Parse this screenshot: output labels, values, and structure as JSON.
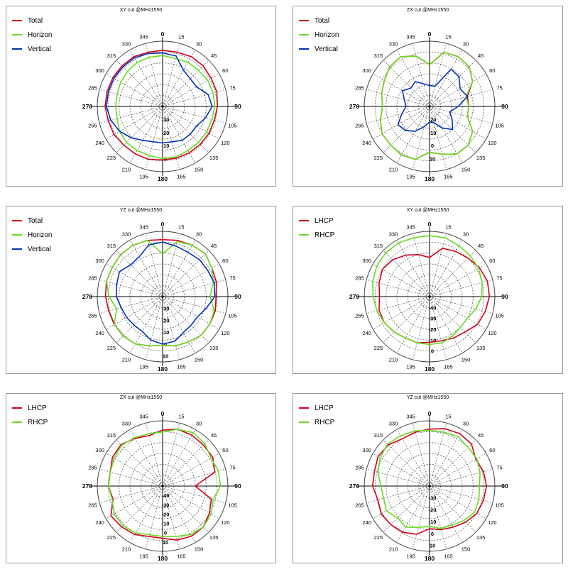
{
  "chart_data": [
    {
      "type": "polar",
      "title": "XY cut @MHz1550",
      "angle_labels": [
        "0",
        "15",
        "30",
        "45",
        "60",
        "75",
        "90",
        "105",
        "120",
        "135",
        "150",
        "165",
        "180",
        "195",
        "210",
        "225",
        "240",
        "265",
        "270",
        "285",
        "300",
        "315",
        "330",
        "345"
      ],
      "radial_labels": [
        "-30",
        "-20",
        "-10",
        "0"
      ],
      "rlim": [
        -40,
        10
      ],
      "series": [
        {
          "name": "Total",
          "color": "#d4001a",
          "values": [
            3,
            3,
            4,
            4,
            3,
            3,
            2,
            1,
            1,
            1,
            1,
            1,
            1,
            2,
            2,
            2,
            3,
            3,
            4,
            4,
            4,
            4,
            4,
            3
          ]
        },
        {
          "name": "Horizon",
          "color": "#66dd22",
          "values": [
            -1,
            -2,
            -1,
            -1,
            0,
            0,
            0,
            -1,
            -1,
            -1,
            -1,
            0,
            0,
            -1,
            -1,
            -1,
            -2,
            -4,
            -4,
            -4,
            -3,
            -2,
            -1,
            -1
          ]
        },
        {
          "name": "Vertical",
          "color": "#0033bb",
          "values": [
            1,
            0,
            -8,
            -10,
            -10,
            -4,
            -2,
            -6,
            -10,
            -10,
            -10,
            -12,
            -12,
            -12,
            -10,
            -6,
            -2,
            1,
            3,
            3,
            3,
            3,
            3,
            2
          ]
        }
      ]
    },
    {
      "type": "polar",
      "title": "ZX cut @MHz1550",
      "angle_labels": [
        "0",
        "15",
        "30",
        "45",
        "60",
        "75",
        "90",
        "105",
        "120",
        "135",
        "150",
        "165",
        "180",
        "195",
        "210",
        "225",
        "240",
        "265",
        "270",
        "285",
        "300",
        "315",
        "330",
        "345"
      ],
      "radial_labels": [
        "-20",
        "-10",
        "0",
        "10"
      ],
      "rlim": [
        -30,
        20
      ],
      "series": [
        {
          "name": "Total",
          "color": "#d4001a",
          "values": [
            2,
            13,
            14,
            13,
            8,
            0,
            0,
            0,
            8,
            12,
            12,
            8,
            5,
            12,
            13,
            12,
            12,
            9,
            6,
            8,
            10,
            13,
            14,
            10
          ]
        },
        {
          "name": "Horizon",
          "color": "#66dd22",
          "values": [
            2,
            13,
            14,
            13,
            8,
            -1,
            0,
            0,
            8,
            12,
            12,
            8,
            5,
            12,
            13,
            12,
            12,
            9,
            6,
            8,
            10,
            13,
            14,
            10
          ]
        },
        {
          "name": "Vertical",
          "color": "#0033bb",
          "values": [
            -14,
            -14,
            3,
            2,
            -3,
            0,
            -8,
            -14,
            -10,
            -5,
            -11,
            -17,
            -18,
            -14,
            -8,
            -4,
            -2,
            -8,
            -12,
            -10,
            -6,
            -10,
            -8,
            -12
          ]
        }
      ]
    },
    {
      "type": "polar",
      "title": "YZ cut @MHz1550",
      "angle_labels": [
        "0",
        "15",
        "30",
        "45",
        "60",
        "75",
        "90",
        "105",
        "120",
        "135",
        "150",
        "165",
        "180",
        "195",
        "210",
        "225",
        "240",
        "265",
        "270",
        "285",
        "300",
        "315",
        "330",
        "345"
      ],
      "radial_labels": [
        "-30",
        "-20",
        "-10",
        "0",
        "10"
      ],
      "rlim": [
        -40,
        15
      ],
      "series": [
        {
          "name": "Total",
          "color": "#d4001a",
          "values": [
            8,
            9,
            10,
            11,
            8,
            7,
            5,
            6,
            6,
            6,
            4,
            3,
            1,
            3,
            6,
            7,
            7,
            7,
            8,
            9,
            9,
            10,
            10,
            9
          ]
        },
        {
          "name": "Horizon",
          "color": "#66dd22",
          "values": [
            -4,
            8,
            10,
            11,
            8,
            4,
            0,
            5,
            6,
            6,
            4,
            3,
            1,
            3,
            6,
            7,
            7,
            0,
            5,
            9,
            9,
            10,
            10,
            9
          ]
        },
        {
          "name": "Vertical",
          "color": "#0033bb",
          "values": [
            6,
            4,
            3,
            4,
            4,
            5,
            4,
            -2,
            -6,
            -6,
            -5,
            -1,
            0,
            -2,
            -6,
            -6,
            -5,
            -4,
            -1,
            0,
            2,
            -2,
            -1,
            5
          ]
        }
      ]
    },
    {
      "type": "polar",
      "title": "XY cut @MHz1550",
      "angle_labels": [
        "0",
        "15",
        "30",
        "45",
        "60",
        "75",
        "90",
        "105",
        "120",
        "135",
        "150",
        "165",
        "180",
        "195",
        "210",
        "225",
        "240",
        "265",
        "270",
        "285",
        "300",
        "315",
        "330",
        "345"
      ],
      "radial_labels": [
        "-40",
        "-30",
        "-20",
        "-10",
        "0"
      ],
      "rlim": [
        -50,
        10
      ],
      "series": [
        {
          "name": "LHCP",
          "color": "#d4001a",
          "values": [
            -14,
            -4,
            -2,
            0,
            3,
            5,
            5,
            3,
            1,
            -4,
            -6,
            -8,
            -8,
            -6,
            -6,
            -4,
            -2,
            -2,
            -4,
            -2,
            0,
            -2,
            -6,
            -10
          ]
        },
        {
          "name": "RHCP",
          "color": "#66dd22",
          "values": [
            6,
            6,
            4,
            3,
            2,
            0,
            -2,
            -6,
            -10,
            -10,
            -8,
            -6,
            -6,
            -6,
            -6,
            -4,
            -2,
            0,
            2,
            4,
            6,
            7,
            7,
            6
          ]
        }
      ]
    },
    {
      "type": "polar",
      "title": "ZX cut @MHz1550",
      "angle_labels": [
        "0",
        "15",
        "30",
        "45",
        "60",
        "75",
        "90",
        "105",
        "120",
        "135",
        "150",
        "165",
        "180",
        "195",
        "210",
        "225",
        "240",
        "265",
        "270",
        "285",
        "300",
        "315",
        "330",
        "345"
      ],
      "radial_labels": [
        "-40",
        "-30",
        "-20",
        "-10",
        "0",
        "10"
      ],
      "rlim": [
        -50,
        20
      ],
      "series": [
        {
          "name": "LHCP",
          "color": "#d4001a",
          "values": [
            10,
            13,
            13,
            12,
            12,
            8,
            -15,
            4,
            8,
            12,
            12,
            10,
            6,
            6,
            10,
            12,
            14,
            5,
            8,
            8,
            12,
            13,
            9,
            6
          ]
        },
        {
          "name": "RHCP",
          "color": "#66dd22",
          "values": [
            8,
            13,
            16,
            14,
            10,
            12,
            12,
            6,
            10,
            12,
            10,
            6,
            4,
            4,
            8,
            10,
            10,
            6,
            8,
            8,
            10,
            12,
            10,
            8
          ]
        }
      ]
    },
    {
      "type": "polar",
      "title": "YZ cut @MHz1550",
      "angle_labels": [
        "0",
        "15",
        "30",
        "45",
        "60",
        "75",
        "90",
        "105",
        "120",
        "135",
        "150",
        "165",
        "180",
        "195",
        "210",
        "225",
        "240",
        "265",
        "270",
        "285",
        "300",
        "315",
        "330",
        "345"
      ],
      "radial_labels": [
        "-30",
        "-20",
        "-10",
        "0",
        "10"
      ],
      "rlim": [
        -40,
        15
      ],
      "series": [
        {
          "name": "LHCP",
          "color": "#d4001a",
          "values": [
            8,
            10,
            11,
            10,
            5,
            7,
            8,
            7,
            6,
            3,
            0,
            -2,
            -4,
            2,
            5,
            6,
            7,
            5,
            8,
            8,
            10,
            9,
            6,
            7
          ]
        },
        {
          "name": "RHCP",
          "color": "#66dd22",
          "values": [
            7,
            7,
            8,
            6,
            6,
            4,
            2,
            3,
            4,
            1,
            -2,
            -3,
            -6,
            -4,
            0,
            -2,
            2,
            0,
            1,
            5,
            8,
            10,
            9,
            8
          ]
        }
      ]
    }
  ]
}
